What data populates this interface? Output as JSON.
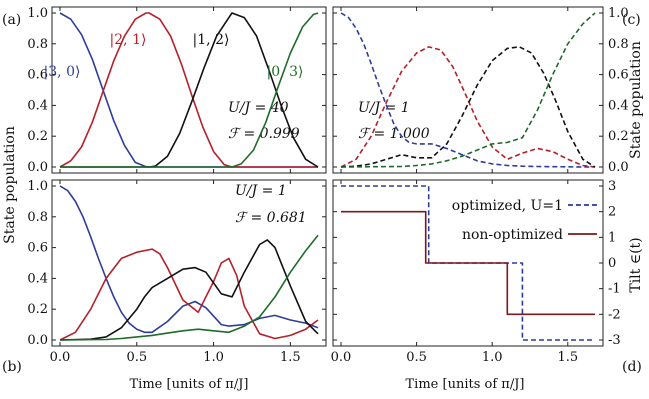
{
  "chart_data": [
    {
      "panel": "(a)",
      "type": "line",
      "y_ticks": [
        "0.0",
        "0.2",
        "0.4",
        "0.6",
        "0.8",
        "1.0"
      ],
      "xlim": [
        0,
        1.68
      ],
      "ylim": [
        0,
        1
      ],
      "ylabel": "State population",
      "annotations": {
        "param": "U/J = 40",
        "fidelity": "ℱ = 0.999"
      },
      "series": [
        {
          "name": "|3, 0⟩",
          "color": "#2e3d9c",
          "dashed": false,
          "x": [
            0,
            0.07,
            0.14,
            0.21,
            0.28,
            0.35,
            0.42,
            0.49,
            0.56,
            0.58,
            0.63,
            0.7,
            1.68
          ],
          "y": [
            1,
            0.96,
            0.86,
            0.7,
            0.5,
            0.3,
            0.14,
            0.03,
            0.002,
            0,
            0,
            0,
            0
          ]
        },
        {
          "name": "|2, 1⟩",
          "color": "#b5202a",
          "dashed": false,
          "x": [
            0,
            0.07,
            0.14,
            0.21,
            0.28,
            0.35,
            0.42,
            0.49,
            0.56,
            0.58,
            0.65,
            0.72,
            0.79,
            0.86,
            0.93,
            1.0,
            1.07,
            1.12,
            1.2,
            1.68
          ],
          "y": [
            0,
            0.04,
            0.13,
            0.29,
            0.49,
            0.69,
            0.85,
            0.96,
            1,
            1,
            0.96,
            0.85,
            0.67,
            0.46,
            0.26,
            0.1,
            0.015,
            0,
            0,
            0
          ]
        },
        {
          "name": "|1, 2⟩",
          "color": "#111111",
          "dashed": false,
          "x": [
            0,
            0.58,
            0.62,
            0.7,
            0.78,
            0.86,
            0.94,
            1.02,
            1.1,
            1.12,
            1.2,
            1.28,
            1.36,
            1.44,
            1.52,
            1.6,
            1.68
          ],
          "y": [
            0,
            0,
            0.005,
            0.07,
            0.22,
            0.43,
            0.65,
            0.85,
            0.97,
            1,
            0.97,
            0.85,
            0.63,
            0.4,
            0.19,
            0.05,
            0
          ]
        },
        {
          "name": "|0, 3⟩",
          "color": "#1f6b2a",
          "dashed": false,
          "x": [
            0,
            1.12,
            1.18,
            1.26,
            1.34,
            1.42,
            1.5,
            1.58,
            1.65,
            1.68
          ],
          "y": [
            0,
            0,
            0.02,
            0.11,
            0.29,
            0.52,
            0.74,
            0.91,
            0.99,
            1
          ]
        }
      ]
    },
    {
      "panel": "(c)",
      "type": "line",
      "y_ticks": [
        "0.0",
        "0.2",
        "0.4",
        "0.6",
        "0.8",
        "1.0"
      ],
      "xlim": [
        0,
        1.68
      ],
      "ylim": [
        0,
        1
      ],
      "ylabel": "State population",
      "annotations": {
        "param": "U/J = 1",
        "fidelity": "ℱ = 1.000"
      },
      "series": [
        {
          "name": "|3, 0⟩",
          "color": "#2e3d9c",
          "dashed": true,
          "x": [
            0,
            0.05,
            0.1,
            0.15,
            0.2,
            0.25,
            0.3,
            0.35,
            0.4,
            0.45,
            0.5,
            0.6,
            0.7,
            0.8,
            0.9,
            1.0,
            1.1,
            1.2,
            1.3,
            1.4,
            1.5,
            1.6,
            1.68
          ],
          "y": [
            1,
            0.97,
            0.9,
            0.8,
            0.67,
            0.53,
            0.4,
            0.28,
            0.2,
            0.16,
            0.15,
            0.15,
            0.12,
            0.08,
            0.04,
            0.02,
            0.01,
            0.005,
            0.003,
            0.002,
            0.001,
            0,
            0
          ]
        },
        {
          "name": "|2, 1⟩",
          "color": "#b5202a",
          "dashed": true,
          "x": [
            0,
            0.1,
            0.2,
            0.3,
            0.4,
            0.5,
            0.58,
            0.66,
            0.74,
            0.82,
            0.9,
            1.0,
            1.1,
            1.2,
            1.3,
            1.4,
            1.5,
            1.6,
            1.68
          ],
          "y": [
            0,
            0.05,
            0.2,
            0.42,
            0.62,
            0.74,
            0.78,
            0.76,
            0.65,
            0.48,
            0.3,
            0.13,
            0.05,
            0.09,
            0.12,
            0.1,
            0.05,
            0.01,
            0
          ]
        },
        {
          "name": "|1, 2⟩",
          "color": "#111111",
          "dashed": true,
          "x": [
            0,
            0.1,
            0.2,
            0.3,
            0.4,
            0.5,
            0.6,
            0.7,
            0.8,
            0.9,
            1.0,
            1.1,
            1.18,
            1.26,
            1.34,
            1.42,
            1.5,
            1.6,
            1.68
          ],
          "y": [
            0,
            0.005,
            0.02,
            0.05,
            0.08,
            0.06,
            0.06,
            0.15,
            0.33,
            0.53,
            0.69,
            0.77,
            0.78,
            0.74,
            0.61,
            0.43,
            0.23,
            0.05,
            0
          ]
        },
        {
          "name": "|0, 3⟩",
          "color": "#1f6b2a",
          "dashed": true,
          "x": [
            0,
            0.4,
            0.5,
            0.6,
            0.7,
            0.8,
            0.9,
            1.0,
            1.1,
            1.2,
            1.3,
            1.4,
            1.5,
            1.6,
            1.68
          ],
          "y": [
            0,
            0.003,
            0.01,
            0.02,
            0.04,
            0.07,
            0.11,
            0.15,
            0.16,
            0.19,
            0.37,
            0.6,
            0.8,
            0.93,
            1
          ]
        }
      ]
    },
    {
      "panel": "(b)",
      "type": "line",
      "x_ticks": [
        "0.0",
        "0.5",
        "1.0",
        "1.5"
      ],
      "y_ticks": [
        "0.0",
        "0.2",
        "0.4",
        "0.6",
        "0.8",
        "1.0"
      ],
      "xlim": [
        0,
        1.68
      ],
      "ylim": [
        0,
        1
      ],
      "xlabel": "Time [units of π/J]",
      "annotations": {
        "param": "U/J = 1",
        "fidelity": "ℱ = 0.681"
      },
      "series": [
        {
          "name": "|3, 0⟩",
          "color": "#2e3d9c",
          "dashed": false,
          "x": [
            0,
            0.05,
            0.1,
            0.15,
            0.2,
            0.25,
            0.3,
            0.35,
            0.4,
            0.45,
            0.5,
            0.55,
            0.6,
            0.7,
            0.8,
            0.88,
            0.95,
            1.05,
            1.1,
            1.2,
            1.3,
            1.4,
            1.5,
            1.6,
            1.68
          ],
          "y": [
            1,
            0.97,
            0.9,
            0.8,
            0.67,
            0.53,
            0.4,
            0.28,
            0.18,
            0.11,
            0.07,
            0.05,
            0.05,
            0.12,
            0.22,
            0.25,
            0.21,
            0.1,
            0.09,
            0.1,
            0.14,
            0.16,
            0.13,
            0.11,
            0.08
          ]
        },
        {
          "name": "|2, 1⟩",
          "color": "#b5202a",
          "dashed": false,
          "x": [
            0,
            0.1,
            0.2,
            0.3,
            0.4,
            0.5,
            0.6,
            0.65,
            0.7,
            0.8,
            0.9,
            1.0,
            1.05,
            1.1,
            1.15,
            1.2,
            1.3,
            1.4,
            1.5,
            1.6,
            1.68
          ],
          "y": [
            0,
            0.05,
            0.2,
            0.4,
            0.53,
            0.57,
            0.59,
            0.56,
            0.47,
            0.26,
            0.18,
            0.38,
            0.5,
            0.53,
            0.42,
            0.22,
            0.04,
            0.01,
            0.03,
            0.07,
            0.13
          ]
        },
        {
          "name": "|1, 2⟩",
          "color": "#111111",
          "dashed": false,
          "x": [
            0,
            0.2,
            0.3,
            0.4,
            0.5,
            0.55,
            0.6,
            0.7,
            0.8,
            0.88,
            0.95,
            1.05,
            1.12,
            1.2,
            1.3,
            1.35,
            1.4,
            1.5,
            1.6,
            1.68
          ],
          "y": [
            0,
            0.005,
            0.02,
            0.08,
            0.2,
            0.28,
            0.34,
            0.4,
            0.46,
            0.47,
            0.44,
            0.3,
            0.28,
            0.44,
            0.62,
            0.65,
            0.6,
            0.35,
            0.12,
            0.04
          ]
        },
        {
          "name": "|0, 3⟩",
          "color": "#1f6b2a",
          "dashed": false,
          "x": [
            0,
            0.3,
            0.4,
            0.5,
            0.6,
            0.7,
            0.8,
            0.9,
            1.0,
            1.1,
            1.2,
            1.3,
            1.4,
            1.5,
            1.6,
            1.68
          ],
          "y": [
            0,
            0.003,
            0.01,
            0.02,
            0.03,
            0.045,
            0.06,
            0.07,
            0.06,
            0.05,
            0.09,
            0.15,
            0.28,
            0.44,
            0.58,
            0.68
          ]
        }
      ]
    },
    {
      "panel": "(d)",
      "type": "line",
      "x_ticks": [
        "0.0",
        "0.5",
        "1.0",
        "1.5"
      ],
      "y_ticks": [
        "3",
        "2",
        "1",
        "0",
        "-1",
        "-2",
        "-3"
      ],
      "xlim": [
        0,
        1.68
      ],
      "ylim": [
        -3,
        3
      ],
      "xlabel": "Time [units of π/J]",
      "ylabel": "Tilt ∈(t)",
      "legend_position": "top-right",
      "series": [
        {
          "name": "optimized, U=1",
          "color": "#2e3d9c",
          "dashed": true,
          "x": [
            0,
            0.58,
            0.58,
            1.2,
            1.2,
            1.68
          ],
          "y": [
            3,
            3,
            0,
            0,
            -3,
            -3
          ]
        },
        {
          "name": "non-optimized",
          "color": "#7a1a1a",
          "dashed": false,
          "x": [
            0,
            0.56,
            0.56,
            1.1,
            1.1,
            1.68
          ],
          "y": [
            2,
            2,
            0,
            0,
            -2,
            -2
          ]
        }
      ]
    }
  ]
}
